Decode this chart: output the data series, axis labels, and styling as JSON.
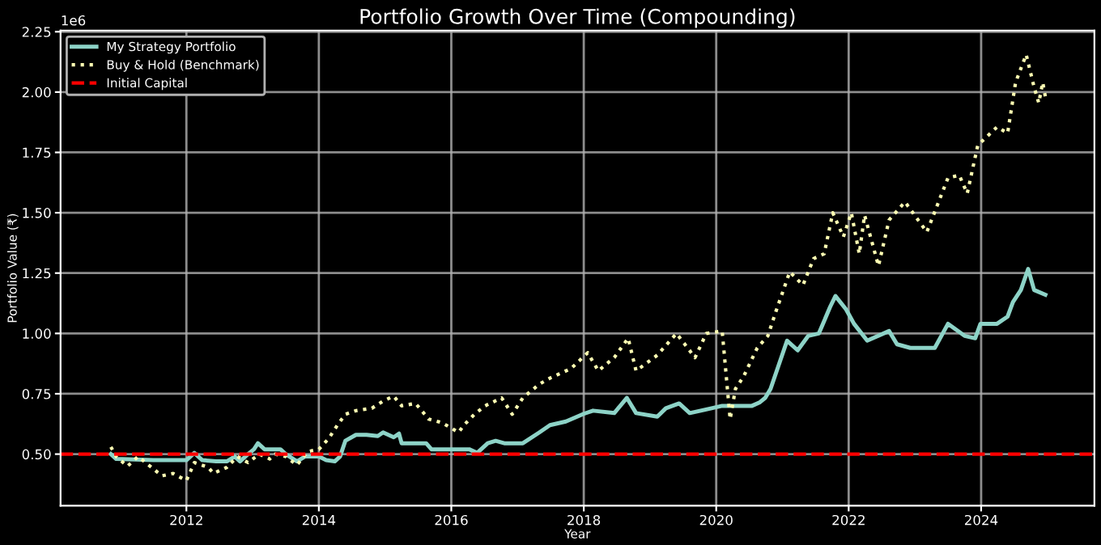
{
  "chart_data": {
    "type": "line",
    "title": "Portfolio Growth Over Time (Compounding)",
    "xlabel": "Year",
    "ylabel": "Portfolio Value (₹)",
    "annotations": [
      "1e6"
    ],
    "series": [
      {
        "name": "My Strategy Portfolio",
        "color": "#8dd3c7",
        "line_style": "solid",
        "x": [
          2010.86,
          2010.94,
          2011.5,
          2012.0,
          2012.12,
          2012.24,
          2012.45,
          2012.61,
          2012.73,
          2012.81,
          2012.93,
          2013.02,
          2013.08,
          2013.18,
          2013.42,
          2013.5,
          2013.67,
          2013.79,
          2014.0,
          2014.11,
          2014.24,
          2014.32,
          2014.4,
          2014.56,
          2014.72,
          2014.89,
          2014.97,
          2015.13,
          2015.21,
          2015.25,
          2015.62,
          2015.7,
          2016.27,
          2016.39,
          2016.55,
          2016.67,
          2016.8,
          2017.08,
          2017.33,
          2017.49,
          2017.73,
          2018.0,
          2018.14,
          2018.46,
          2018.65,
          2018.79,
          2019.11,
          2019.24,
          2019.44,
          2019.6,
          2019.93,
          2020.09,
          2020.54,
          2020.66,
          2020.74,
          2020.82,
          2021.07,
          2021.23,
          2021.39,
          2021.55,
          2021.72,
          2021.8,
          2021.96,
          2022.08,
          2022.28,
          2022.61,
          2022.73,
          2022.93,
          2023.3,
          2023.5,
          2023.75,
          2023.91,
          2023.99,
          2024.24,
          2024.4,
          2024.48,
          2024.6,
          2024.71,
          2024.8,
          2024.97
        ],
        "values": [
          0.5,
          0.48,
          0.475,
          0.475,
          0.505,
          0.475,
          0.47,
          0.47,
          0.49,
          0.47,
          0.5,
          0.52,
          0.545,
          0.52,
          0.52,
          0.5,
          0.47,
          0.49,
          0.49,
          0.475,
          0.47,
          0.49,
          0.555,
          0.58,
          0.58,
          0.575,
          0.59,
          0.57,
          0.585,
          0.545,
          0.545,
          0.52,
          0.52,
          0.505,
          0.545,
          0.555,
          0.545,
          0.545,
          0.59,
          0.62,
          0.635,
          0.667,
          0.68,
          0.67,
          0.733,
          0.67,
          0.655,
          0.69,
          0.71,
          0.67,
          0.69,
          0.7,
          0.7,
          0.715,
          0.733,
          0.77,
          0.97,
          0.93,
          0.99,
          1.0,
          1.11,
          1.155,
          1.1,
          1.04,
          0.97,
          1.01,
          0.955,
          0.94,
          0.94,
          1.04,
          0.99,
          0.98,
          1.04,
          1.04,
          1.07,
          1.13,
          1.18,
          1.267,
          1.18,
          1.16
        ]
      },
      {
        "name": "Buy & Hold (Benchmark)",
        "color": "#ffffb3",
        "line_style": "dotted",
        "x": [
          2010.86,
          2010.94,
          2011.11,
          2011.27,
          2011.43,
          2011.63,
          2011.8,
          2012.0,
          2012.12,
          2012.33,
          2012.41,
          2012.61,
          2012.77,
          2012.93,
          2013.1,
          2013.26,
          2013.34,
          2013.5,
          2013.67,
          2013.83,
          2014.0,
          2014.15,
          2014.28,
          2014.4,
          2014.56,
          2014.8,
          2014.97,
          2015.13,
          2015.25,
          2015.46,
          2015.66,
          2015.86,
          2016.11,
          2016.19,
          2016.35,
          2016.51,
          2016.76,
          2016.92,
          2017.08,
          2017.33,
          2017.49,
          2017.81,
          2018.06,
          2018.22,
          2018.46,
          2018.67,
          2018.79,
          2019.11,
          2019.4,
          2019.68,
          2019.85,
          2020.09,
          2020.21,
          2020.29,
          2020.41,
          2020.62,
          2020.78,
          2020.9,
          2021.11,
          2021.31,
          2021.47,
          2021.63,
          2021.76,
          2021.92,
          2022.04,
          2022.16,
          2022.24,
          2022.45,
          2022.61,
          2022.85,
          2023.18,
          2023.5,
          2023.67,
          2023.79,
          2023.95,
          2024.24,
          2024.4,
          2024.52,
          2024.68,
          2024.8,
          2024.87,
          2024.93,
          2024.97
        ],
        "values": [
          0.53,
          0.49,
          0.45,
          0.49,
          0.455,
          0.41,
          0.42,
          0.39,
          0.465,
          0.445,
          0.42,
          0.445,
          0.49,
          0.465,
          0.5,
          0.48,
          0.5,
          0.49,
          0.455,
          0.51,
          0.52,
          0.565,
          0.62,
          0.665,
          0.68,
          0.69,
          0.72,
          0.74,
          0.7,
          0.71,
          0.645,
          0.63,
          0.59,
          0.62,
          0.665,
          0.7,
          0.733,
          0.665,
          0.733,
          0.79,
          0.815,
          0.855,
          0.92,
          0.845,
          0.9,
          0.98,
          0.845,
          0.91,
          1.0,
          0.9,
          1.0,
          1.01,
          0.645,
          0.77,
          0.82,
          0.94,
          0.99,
          1.09,
          1.255,
          1.2,
          1.31,
          1.33,
          1.5,
          1.4,
          1.5,
          1.33,
          1.49,
          1.28,
          1.47,
          1.545,
          1.42,
          1.645,
          1.655,
          1.58,
          1.78,
          1.855,
          1.83,
          2.04,
          2.155,
          2.02,
          1.955,
          2.04,
          1.98
        ]
      }
    ],
    "ref_lines": [
      {
        "axis": "y",
        "value": 0.5,
        "label": "Initial Capital",
        "color": "#ff0000",
        "line_style": "dashed"
      }
    ],
    "xlim": [
      2010.1,
      2025.71
    ],
    "xticks": [
      2012,
      2014,
      2016,
      2018,
      2020,
      2022,
      2024
    ],
    "ylim": [
      0.286,
      2.255
    ],
    "yticks": [
      {
        "value": 0.5,
        "label": "0.50"
      },
      {
        "value": 0.75,
        "label": "0.75"
      },
      {
        "value": 1.0,
        "label": "1.00"
      },
      {
        "value": 1.25,
        "label": "1.25"
      },
      {
        "value": 1.5,
        "label": "1.50"
      },
      {
        "value": 1.75,
        "label": "1.75"
      },
      {
        "value": 2.0,
        "label": "2.00"
      },
      {
        "value": 2.25,
        "label": "2.25"
      }
    ],
    "grid": true,
    "legend": "top left",
    "marker": "none"
  }
}
